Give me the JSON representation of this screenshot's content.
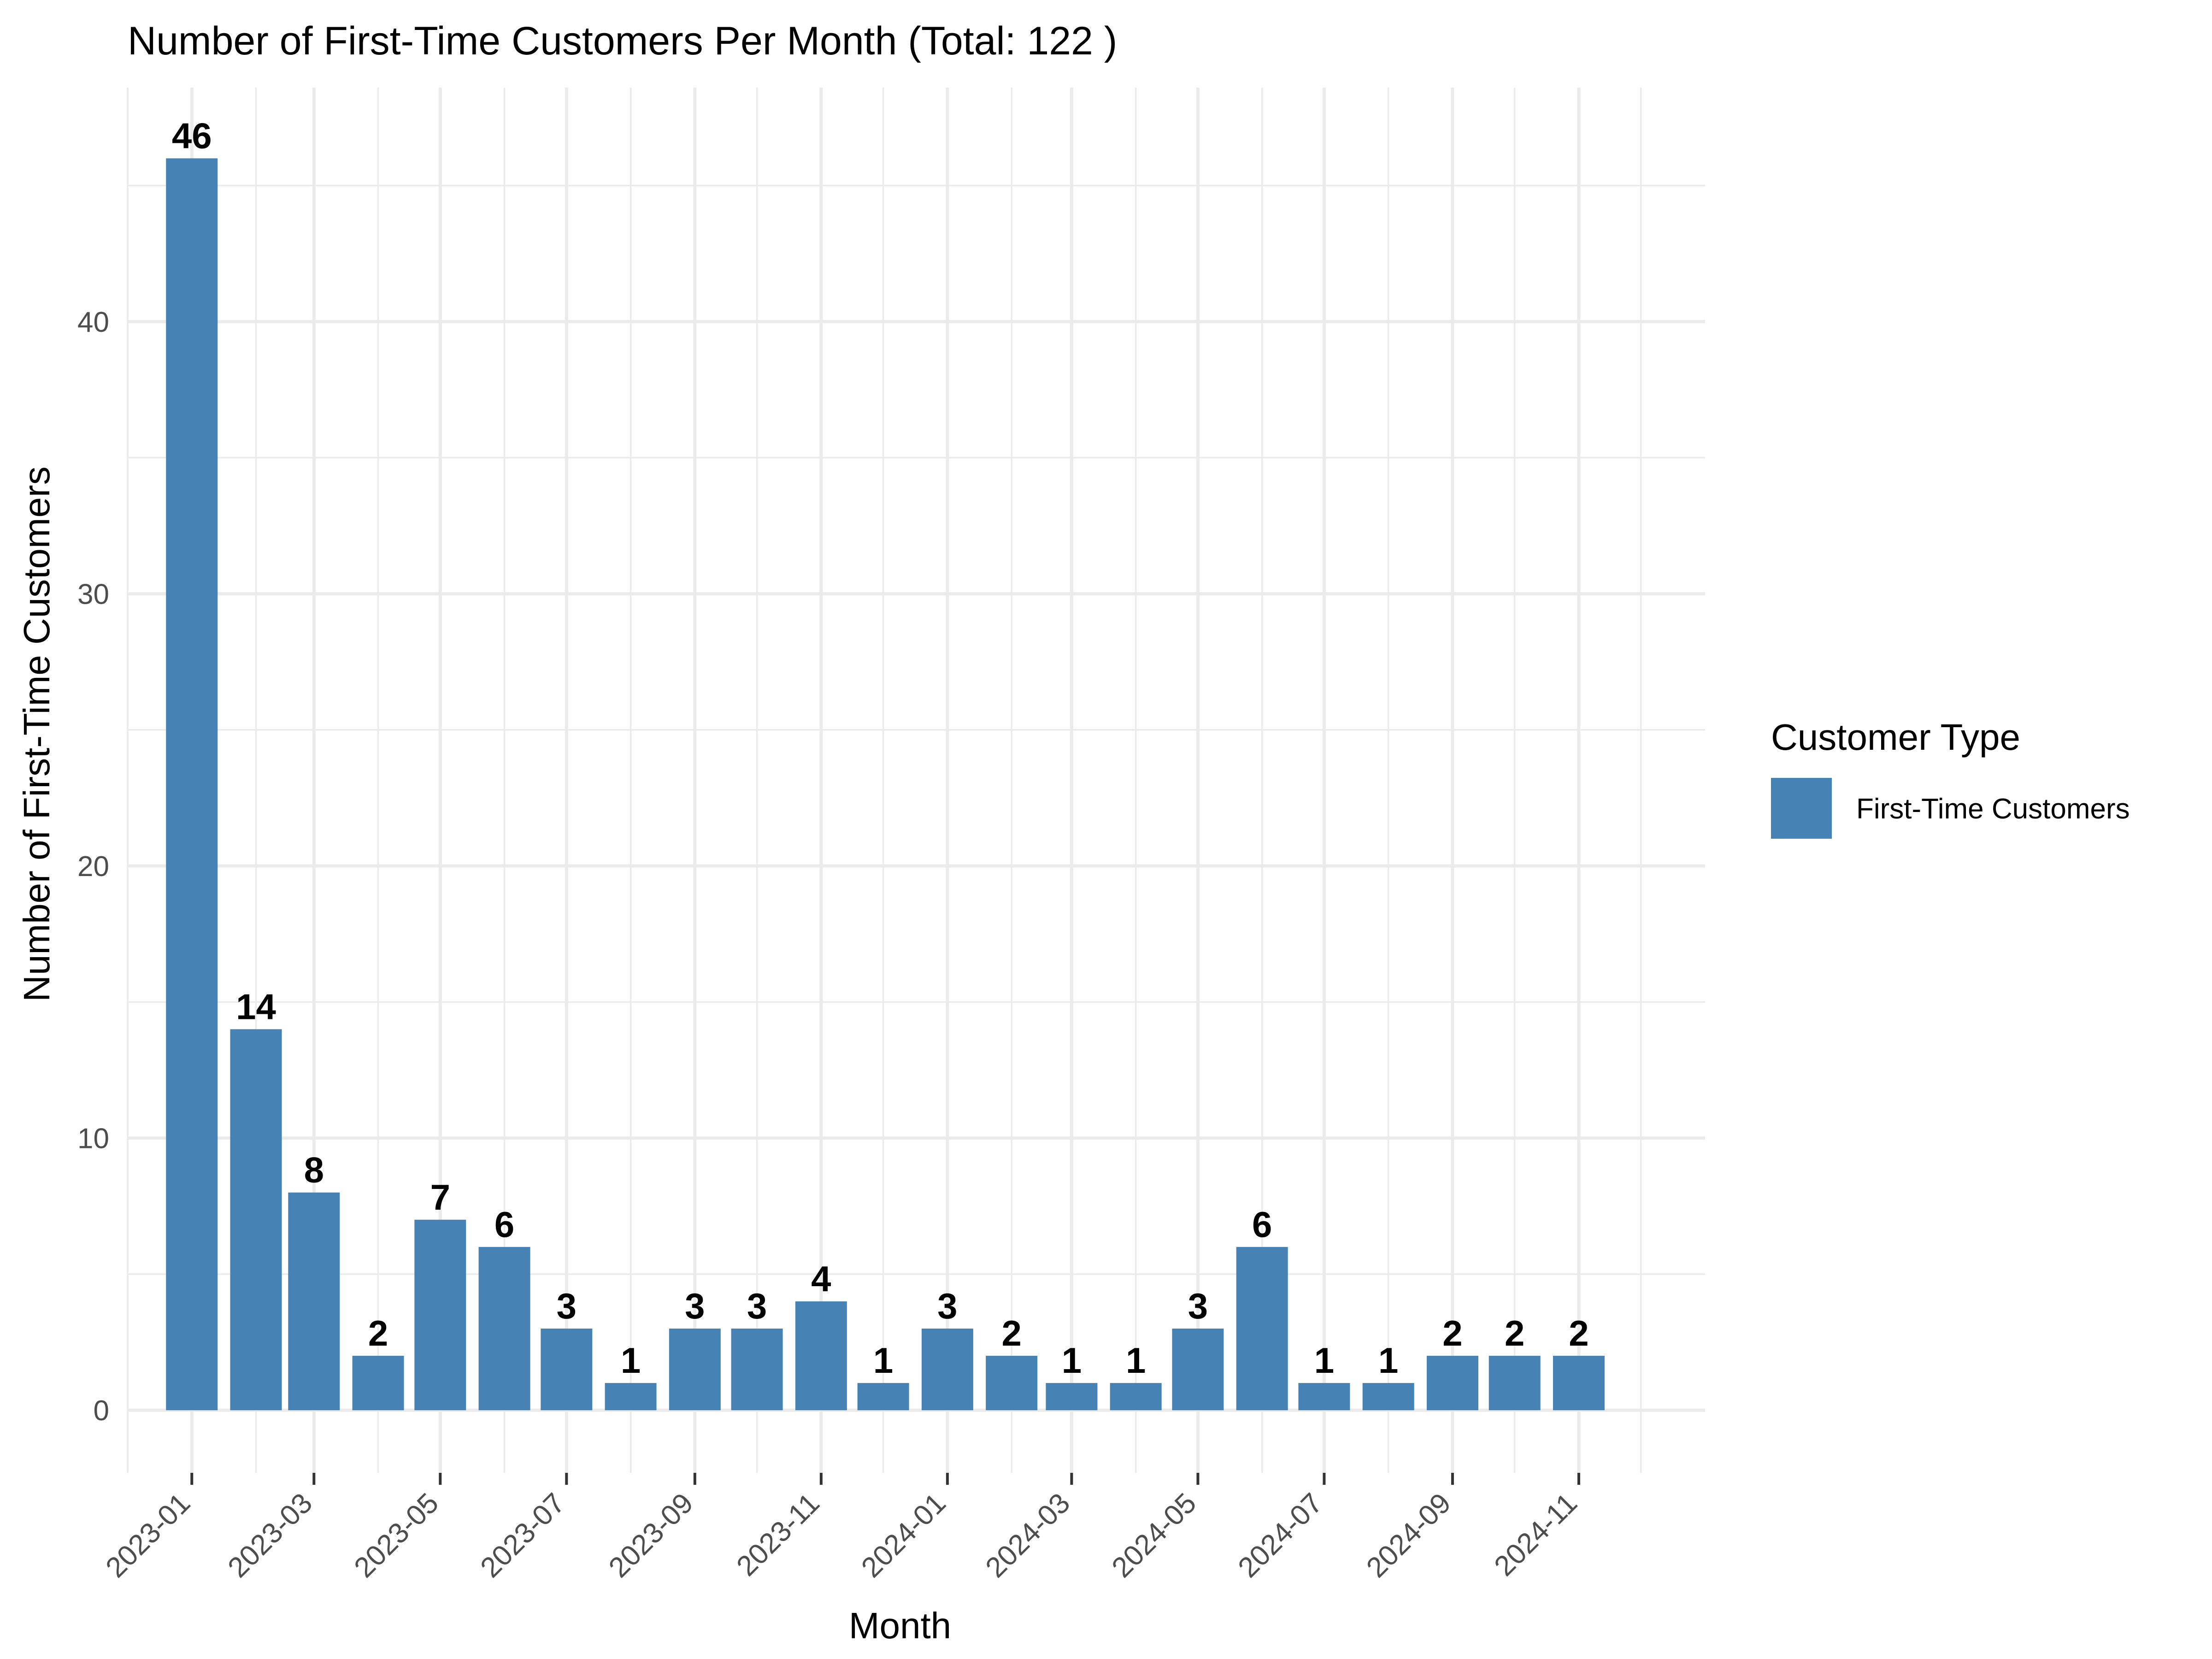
{
  "chart_data": {
    "type": "bar",
    "title": "Number of First-Time Customers Per Month (Total: 122 )",
    "xlabel": "Month",
    "ylabel": "Number of First-Time Customers",
    "ylim": [
      -2.3,
      48.6
    ],
    "yticks": [
      0,
      10,
      20,
      30,
      40
    ],
    "grid": true,
    "legend": {
      "title": "Customer Type",
      "placement": "right",
      "entries": [
        {
          "label": "First-Time Customers",
          "color": "#4682B4"
        }
      ]
    },
    "bar_color": "#4682B4",
    "x_tick_labels": [
      "2023-01",
      "2023-03",
      "2023-05",
      "2023-07",
      "2023-09",
      "2023-11",
      "2024-01",
      "2024-03",
      "2024-05",
      "2024-07",
      "2024-09",
      "2024-11"
    ],
    "xlim": [
      "2022-12-01",
      "2025-01-01"
    ],
    "x": [
      "2023-01-01",
      "2023-02-01",
      "2023-03-01",
      "2023-04-01",
      "2023-05-01",
      "2023-06-01",
      "2023-07-01",
      "2023-08-01",
      "2023-09-01",
      "2023-10-01",
      "2023-11-01",
      "2023-12-01",
      "2024-01-01",
      "2024-02-01",
      "2024-03-01",
      "2024-04-01",
      "2024-05-01",
      "2024-06-01",
      "2024-07-01",
      "2024-08-01",
      "2024-09-01",
      "2024-10-01",
      "2024-11-01"
    ],
    "values": [
      46,
      14,
      8,
      2,
      7,
      6,
      3,
      1,
      3,
      3,
      4,
      1,
      3,
      2,
      1,
      1,
      3,
      6,
      1,
      1,
      2,
      2,
      2
    ]
  }
}
